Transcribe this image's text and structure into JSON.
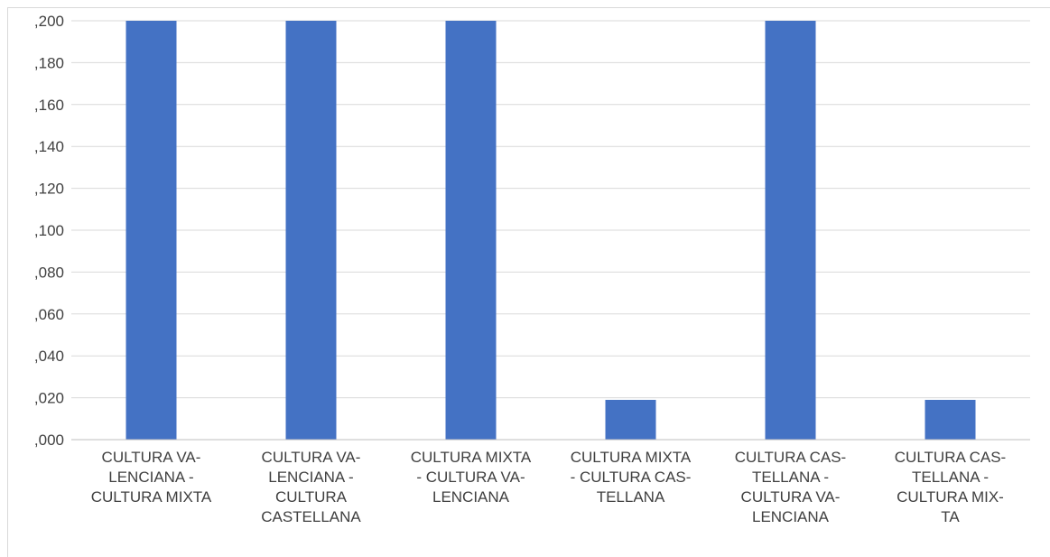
{
  "chart_data": {
    "type": "bar",
    "title": "",
    "xlabel": "",
    "ylabel": "",
    "ylim": [
      0,
      0.2
    ],
    "y_ticks": [
      ",000",
      ",020",
      ",040",
      ",060",
      ",080",
      ",100",
      ",120",
      ",140",
      ",160",
      ",180",
      ",200"
    ],
    "categories": [
      "CULTURA VA- LENCIANA - CULTURA MIXTA",
      "CULTURA VA- LENCIANA - CULTURA CASTELLANA",
      "CULTURA MIXTA - CULTURA VA- LENCIANA",
      "CULTURA MIXTA - CULTURA CAS- TELLANA",
      "CULTURA CAS- TELLANA - CULTURA VA- LENCIANA",
      "CULTURA CAS- TELLANA - CULTURA MIX- TA"
    ],
    "category_lines": [
      [
        "CULTURA VA-",
        "LENCIANA -",
        "CULTURA MIXTA"
      ],
      [
        "CULTURA VA-",
        "LENCIANA -",
        "CULTURA",
        "CASTELLANA"
      ],
      [
        "CULTURA MIXTA",
        "- CULTURA VA-",
        "LENCIANA"
      ],
      [
        "CULTURA MIXTA",
        "- CULTURA CAS-",
        "TELLANA"
      ],
      [
        "CULTURA CAS-",
        "TELLANA -",
        "CULTURA VA-",
        "LENCIANA"
      ],
      [
        "CULTURA CAS-",
        "TELLANA -",
        "CULTURA MIX-",
        "TA"
      ]
    ],
    "values": [
      0.2,
      0.2,
      0.2,
      0.019,
      0.2,
      0.019
    ],
    "bar_color": "#4472c4",
    "grid": true,
    "grid_color": "#d9d9d9",
    "legend": "none"
  }
}
